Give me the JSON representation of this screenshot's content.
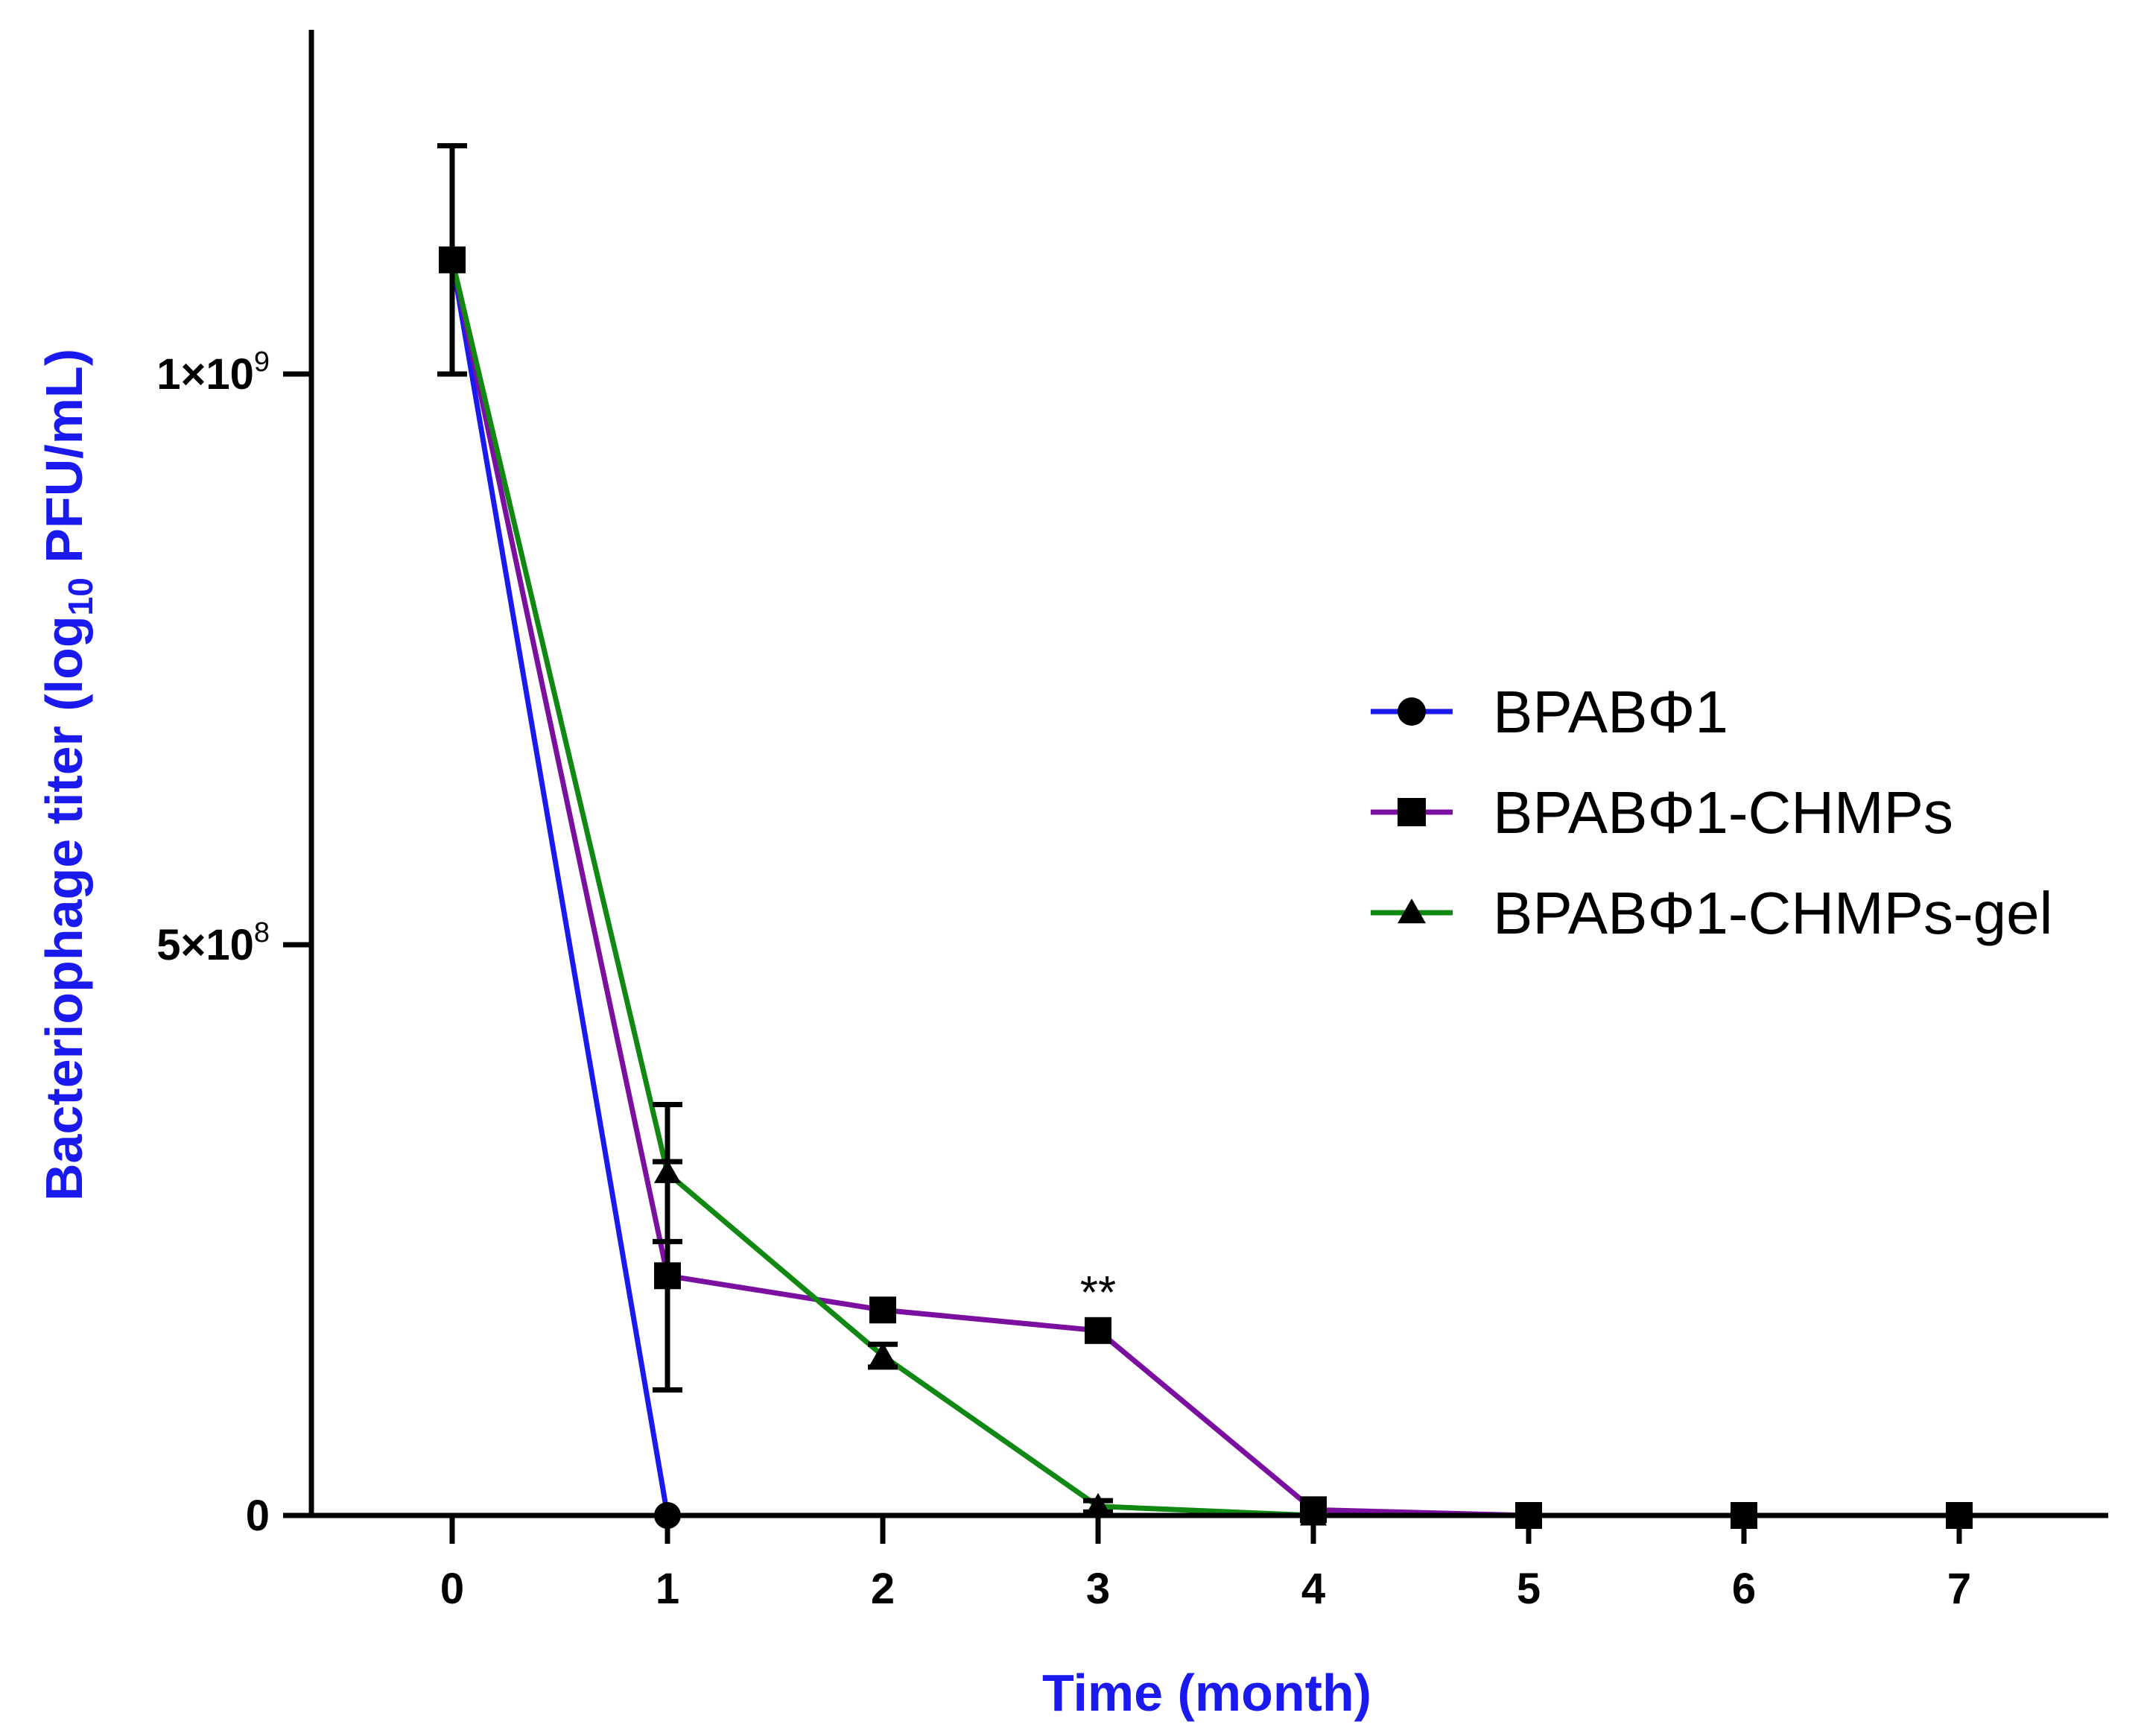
{
  "chart_data": {
    "type": "line",
    "title": "",
    "xlabel": "Time (month)",
    "ylabel_main": "Bacteriophage titer (log",
    "ylabel_sub": "10",
    "ylabel_end": " PFU/mL)",
    "x": [
      0,
      1,
      2,
      3,
      4,
      5,
      6,
      7
    ],
    "xlim": [
      -0.65,
      7.7
    ],
    "ylim": [
      0,
      1250000000
    ],
    "x_ticks": [
      {
        "value": 0,
        "label": "0"
      },
      {
        "value": 1,
        "label": "1"
      },
      {
        "value": 2,
        "label": "2"
      },
      {
        "value": 3,
        "label": "3"
      },
      {
        "value": 4,
        "label": "4"
      },
      {
        "value": 5,
        "label": "5"
      },
      {
        "value": 6,
        "label": "6"
      },
      {
        "value": 7,
        "label": "7"
      }
    ],
    "y_ticks": [
      {
        "value": 0,
        "mant": "0",
        "exp": ""
      },
      {
        "value": 500000000,
        "mant": "5×10",
        "exp": "8"
      },
      {
        "value": 1000000000,
        "mant": "1×10",
        "exp": "9"
      }
    ],
    "series": [
      {
        "name": "BPABΦ1",
        "color": "#1a1aee",
        "marker": "circle",
        "values": [
          1100000000,
          0,
          null,
          null,
          null,
          null,
          null,
          null
        ],
        "err": [
          0,
          0,
          null,
          null,
          null,
          null,
          null,
          null
        ]
      },
      {
        "name": "BPABΦ1-CHMPs",
        "color": "#7a0fa0",
        "marker": "square",
        "values": [
          1100000000,
          210000000,
          180000000,
          162000000,
          5000000,
          0,
          0,
          0
        ],
        "err": [
          100000000,
          100000000,
          0,
          0,
          0,
          0,
          0,
          0
        ]
      },
      {
        "name": "BPABΦ1-CHMPs-gel",
        "color": "#118811",
        "marker": "triangle",
        "values": [
          1100000000,
          300000000,
          140000000,
          8000000,
          0,
          0,
          0,
          0
        ],
        "err": [
          0,
          60000000,
          10000000,
          5000000,
          0,
          0,
          0,
          0
        ]
      }
    ],
    "annotations": [
      {
        "text": "**",
        "x": 3,
        "y": 162000000
      }
    ],
    "legend_position": "right",
    "grid": false,
    "colors": {
      "axis": "#000000",
      "axis_title": "#1a1aee",
      "marker": "#000000"
    }
  }
}
